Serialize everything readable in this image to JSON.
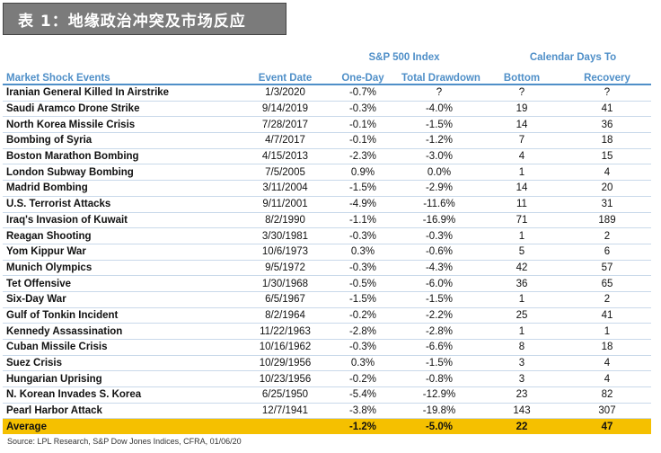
{
  "title": "表 1：地缘政治冲突及市场反应",
  "group_headers": {
    "sp500": "S&P 500 Index",
    "calendar": "Calendar Days To"
  },
  "columns": [
    "Market Shock Events",
    "Event Date",
    "One-Day",
    "Total Drawdown",
    "Bottom",
    "Recovery"
  ],
  "rows": [
    [
      "Iranian General Killed In Airstrike",
      "1/3/2020",
      "-0.7%",
      "?",
      "?",
      "?"
    ],
    [
      "Saudi Aramco Drone Strike",
      "9/14/2019",
      "-0.3%",
      "-4.0%",
      "19",
      "41"
    ],
    [
      "North Korea Missile Crisis",
      "7/28/2017",
      "-0.1%",
      "-1.5%",
      "14",
      "36"
    ],
    [
      "Bombing of Syria",
      "4/7/2017",
      "-0.1%",
      "-1.2%",
      "7",
      "18"
    ],
    [
      "Boston Marathon Bombing",
      "4/15/2013",
      "-2.3%",
      "-3.0%",
      "4",
      "15"
    ],
    [
      "London Subway Bombing",
      "7/5/2005",
      "0.9%",
      "0.0%",
      "1",
      "4"
    ],
    [
      "Madrid Bombing",
      "3/11/2004",
      "-1.5%",
      "-2.9%",
      "14",
      "20"
    ],
    [
      "U.S. Terrorist Attacks",
      "9/11/2001",
      "-4.9%",
      "-11.6%",
      "11",
      "31"
    ],
    [
      "Iraq's Invasion of Kuwait",
      "8/2/1990",
      "-1.1%",
      "-16.9%",
      "71",
      "189"
    ],
    [
      "Reagan Shooting",
      "3/30/1981",
      "-0.3%",
      "-0.3%",
      "1",
      "2"
    ],
    [
      "Yom Kippur War",
      "10/6/1973",
      "0.3%",
      "-0.6%",
      "5",
      "6"
    ],
    [
      "Munich Olympics",
      "9/5/1972",
      "-0.3%",
      "-4.3%",
      "42",
      "57"
    ],
    [
      "Tet Offensive",
      "1/30/1968",
      "-0.5%",
      "-6.0%",
      "36",
      "65"
    ],
    [
      "Six-Day War",
      "6/5/1967",
      "-1.5%",
      "-1.5%",
      "1",
      "2"
    ],
    [
      "Gulf of Tonkin Incident",
      "8/2/1964",
      "-0.2%",
      "-2.2%",
      "25",
      "41"
    ],
    [
      "Kennedy Assassination",
      "11/22/1963",
      "-2.8%",
      "-2.8%",
      "1",
      "1"
    ],
    [
      "Cuban Missile Crisis",
      "10/16/1962",
      "-0.3%",
      "-6.6%",
      "8",
      "18"
    ],
    [
      "Suez Crisis",
      "10/29/1956",
      "0.3%",
      "-1.5%",
      "3",
      "4"
    ],
    [
      "Hungarian Uprising",
      "10/23/1956",
      "-0.2%",
      "-0.8%",
      "3",
      "4"
    ],
    [
      "N. Korean Invades S. Korea",
      "6/25/1950",
      "-5.4%",
      "-12.9%",
      "23",
      "82"
    ],
    [
      "Pearl Harbor Attack",
      "12/7/1941",
      "-3.8%",
      "-19.8%",
      "143",
      "307"
    ]
  ],
  "average": [
    "Average",
    "",
    "-1.2%",
    "-5.0%",
    "22",
    "47"
  ],
  "source": "Source: LPL Research, S&P Dow Jones Indices, CFRA, 01/06/20",
  "colors": {
    "header_blue": "#4f8fc8",
    "average_highlight": "#f5c000",
    "title_bar": "#7b7b7b"
  }
}
